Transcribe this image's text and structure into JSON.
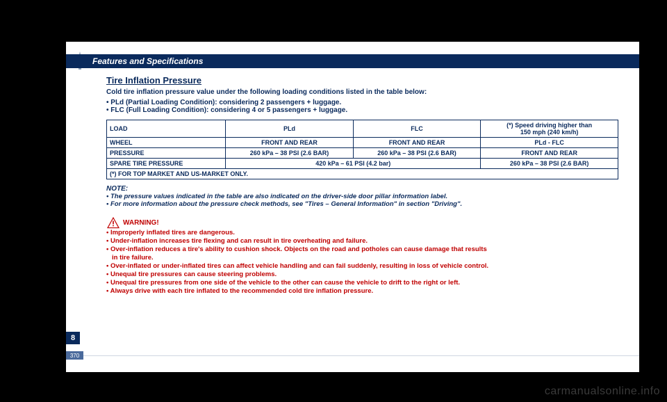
{
  "header": {
    "title": "Features and Specifications"
  },
  "section": {
    "title": "Tire Inflation Pressure",
    "intro": "Cold tire inflation pressure value under the following loading conditions listed in the table below:",
    "bullets": [
      "PLd (Partial Loading Condition): considering 2 passengers + luggage.",
      "FLC (Full Loading Condition): considering 4 or 5 passengers + luggage."
    ]
  },
  "table": {
    "speed_header": "(*) Speed driving higher than\n150 mph (240 km/h)",
    "rows": {
      "load": {
        "label": "LOAD",
        "c1": "PLd",
        "c2": "FLC",
        "c3": "PLd - FLC"
      },
      "wheel": {
        "label": "WHEEL",
        "c1": "FRONT AND REAR",
        "c2": "FRONT AND REAR",
        "c3": "FRONT AND REAR"
      },
      "pressure": {
        "label": "PRESSURE",
        "c1": "260 kPa – 38 PSI (2.6 BAR)",
        "c2": "260 kPa – 38 PSI (2.6 BAR)",
        "c3": "260 kPa – 38 PSI (2.6 BAR)"
      },
      "spare": {
        "label": "SPARE TIRE PRESSURE",
        "val": "420 kPa – 61 PSI (4.2 bar)"
      }
    },
    "footnote": "(*) FOR TOP MARKET AND US-MARKET ONLY."
  },
  "notes": {
    "head": "NOTE:",
    "items": [
      "The pressure values indicated in the table are also indicated on the driver-side door pillar information label.",
      "For more information about the pressure check methods, see \"Tires – General Information\" in section \"Driving\"."
    ]
  },
  "warning": {
    "label": "WARNING!",
    "items": [
      "Improperly inflated tires are dangerous.",
      "Under-inflation increases tire flexing and can result in tire overheating and failure.",
      "Over-inflation reduces a tire's ability to cushion shock. Objects on the road and potholes can cause damage that results",
      "in tire failure.",
      "Over-inflated or under-inflated tires can affect vehicle handling and can fail suddenly, resulting in loss of vehicle control.",
      "Unequal tire pressures can cause steering problems.",
      "Unequal tire pressures from one side of the vehicle to the other can cause the vehicle to drift to the right or left.",
      "Always drive with each tire inflated to the recommended cold tire inflation pressure."
    ],
    "continuations": [
      3
    ]
  },
  "sidebar": {
    "section_num": "8",
    "page_num": "370"
  },
  "watermark": "carmanualsonline.info",
  "colors": {
    "header_bg": "#0a2a5c",
    "body_text": "#0a2a5c",
    "warning": "#c00000",
    "page_bg": "#ffffff",
    "outer_bg": "#000000"
  }
}
